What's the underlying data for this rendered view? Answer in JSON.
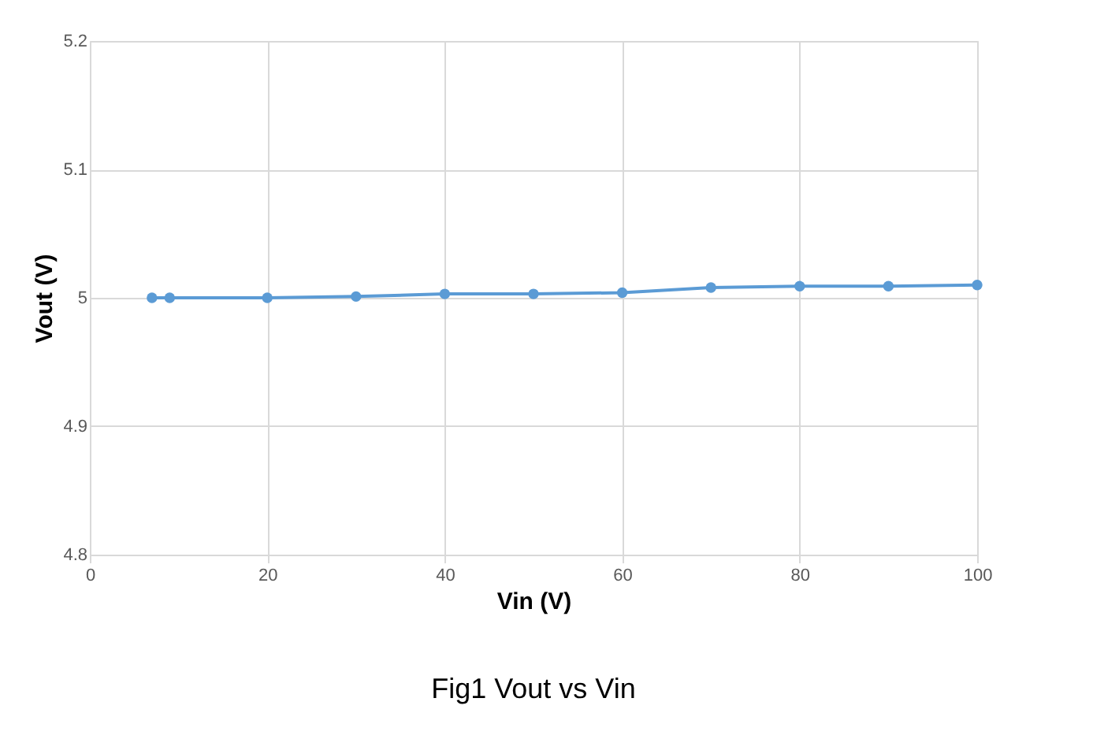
{
  "chart_data": {
    "type": "line",
    "title": "Fig1 Vout vs Vin",
    "xlabel": "Vin (V)",
    "ylabel": "Vout (V)",
    "x": [
      7,
      9,
      20,
      30,
      40,
      50,
      60,
      70,
      80,
      90,
      100
    ],
    "series": [
      {
        "color": "#5b9bd5",
        "values": [
          5.0,
          5.0,
          5.0,
          5.001,
          5.003,
          5.003,
          5.004,
          5.008,
          5.009,
          5.009,
          5.01
        ]
      }
    ],
    "xlim": [
      0,
      100
    ],
    "xticks": [
      0,
      20,
      40,
      60,
      80,
      100
    ],
    "ylim": [
      4.8,
      5.2
    ],
    "yticks": [
      4.8,
      4.9,
      5,
      5.1,
      5.2
    ],
    "grid": true,
    "marker": "circle",
    "line_style": "solid"
  }
}
